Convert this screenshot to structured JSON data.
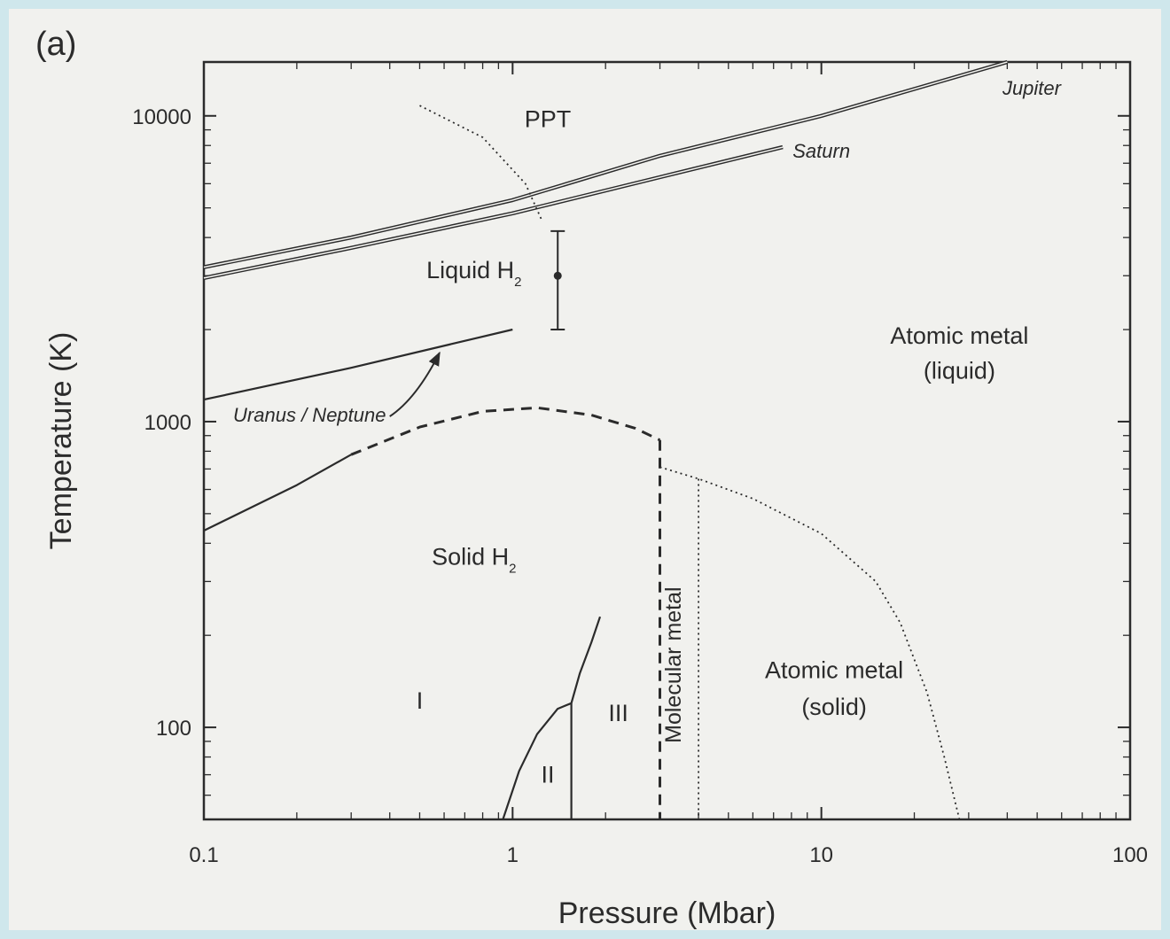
{
  "chart_data": {
    "type": "line",
    "panel_label": "(a)",
    "xlabel": "Pressure (Mbar)",
    "ylabel": "Temperature (K)",
    "x_scale": "log",
    "y_scale": "log",
    "xlim": [
      0.1,
      100
    ],
    "ylim": [
      50,
      15000
    ],
    "x_ticks": [
      {
        "value": 0.1,
        "label": "0.1"
      },
      {
        "value": 1,
        "label": "1"
      },
      {
        "value": 10,
        "label": "10"
      },
      {
        "value": 100,
        "label": "100"
      }
    ],
    "y_ticks": [
      {
        "value": 100,
        "label": "100"
      },
      {
        "value": 1000,
        "label": "1000"
      },
      {
        "value": 10000,
        "label": "10000"
      }
    ],
    "grid": false,
    "series": [
      {
        "name": "Jupiter",
        "style": "double-solid",
        "points": [
          [
            0.1,
            3200
          ],
          [
            0.3,
            4000
          ],
          [
            1,
            5300
          ],
          [
            3,
            7400
          ],
          [
            10,
            10000
          ],
          [
            40,
            15000
          ]
        ]
      },
      {
        "name": "Saturn",
        "style": "double-solid",
        "points": [
          [
            0.1,
            2950
          ],
          [
            0.3,
            3700
          ],
          [
            1,
            4800
          ],
          [
            3,
            6300
          ],
          [
            7.5,
            7900
          ]
        ]
      },
      {
        "name": "Uranus / Neptune",
        "style": "solid",
        "points": [
          [
            0.1,
            1180
          ],
          [
            0.3,
            1500
          ],
          [
            1,
            2000
          ]
        ]
      },
      {
        "style": "dotted",
        "points": [
          [
            0.5,
            10800
          ],
          [
            0.8,
            8500
          ],
          [
            1.1,
            6000
          ],
          [
            1.25,
            4500
          ]
        ]
      },
      {
        "style": "solid",
        "points": [
          [
            0.1,
            440
          ],
          [
            0.2,
            620
          ],
          [
            0.3,
            780
          ]
        ]
      },
      {
        "style": "dashed",
        "points": [
          [
            0.3,
            780
          ],
          [
            0.5,
            960
          ],
          [
            0.8,
            1080
          ],
          [
            1.2,
            1110
          ],
          [
            1.8,
            1050
          ],
          [
            2.5,
            950
          ],
          [
            3,
            870
          ]
        ]
      },
      {
        "style": "dashed",
        "points": [
          [
            3,
            870
          ],
          [
            3,
            50
          ]
        ]
      },
      {
        "style": "dotted",
        "points": [
          [
            3,
            710
          ],
          [
            4,
            650
          ],
          [
            6,
            560
          ],
          [
            10,
            430
          ],
          [
            15,
            300
          ],
          [
            18,
            220
          ],
          [
            22,
            130
          ],
          [
            25,
            80
          ],
          [
            28,
            50
          ]
        ]
      },
      {
        "style": "dotted",
        "points": [
          [
            4,
            650
          ],
          [
            4,
            50
          ]
        ]
      },
      {
        "style": "solid",
        "points": [
          [
            0.93,
            50
          ],
          [
            1.05,
            72
          ],
          [
            1.2,
            95
          ],
          [
            1.4,
            115
          ],
          [
            1.55,
            120
          ]
        ]
      },
      {
        "style": "solid",
        "points": [
          [
            1.55,
            50
          ],
          [
            1.55,
            120
          ]
        ]
      },
      {
        "style": "solid",
        "points": [
          [
            1.55,
            120
          ],
          [
            1.65,
            150
          ],
          [
            1.8,
            190
          ],
          [
            1.92,
            230
          ]
        ]
      }
    ],
    "error_bar": {
      "x": 1.4,
      "y": 3000,
      "low": 2000,
      "high": 4200
    },
    "annotations": [
      {
        "text": "PPT",
        "x": 1.3,
        "y": 9200
      },
      {
        "text": "Liquid H",
        "sub": "2",
        "x": 0.75,
        "y": 2950
      },
      {
        "text": "Atomic metal",
        "x": 28,
        "y": 1800
      },
      {
        "text": "(liquid)",
        "x": 28,
        "y": 1380
      },
      {
        "text": "Solid H",
        "sub": "2",
        "x": 0.75,
        "y": 340
      },
      {
        "text": "I",
        "x": 0.5,
        "y": 115
      },
      {
        "text": "II",
        "x": 1.3,
        "y": 66
      },
      {
        "text": "III",
        "x": 2.2,
        "y": 105
      },
      {
        "text": "Molecular metal",
        "x": 3.5,
        "y": 160,
        "vertical": true
      },
      {
        "text": "Atomic metal",
        "x": 11,
        "y": 145
      },
      {
        "text": "(solid)",
        "x": 11,
        "y": 110
      },
      {
        "text": "Jupiter",
        "x": 48,
        "y": 11700,
        "italic": true
      },
      {
        "text": "Saturn",
        "x": 10,
        "y": 7300,
        "italic": true
      },
      {
        "text": "Uranus / Neptune",
        "x": 0.22,
        "y": 1000,
        "italic": true
      }
    ],
    "arrow": {
      "from": [
        0.4,
        1040
      ],
      "to": [
        0.58,
        1680
      ]
    }
  }
}
